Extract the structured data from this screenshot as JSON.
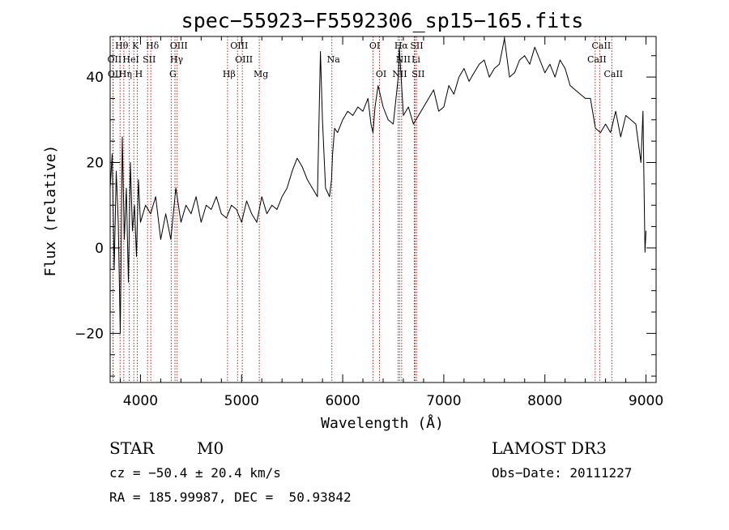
{
  "chart_data": {
    "type": "line",
    "title": "spec−55923−F5592306_sp15−165.fits",
    "xlabel": "Wavelength (Å)",
    "ylabel": "Flux (relative)",
    "xlim": [
      3700,
      9100
    ],
    "ylim": [
      -31.5,
      49.5
    ],
    "x_ticks": [
      4000,
      5000,
      6000,
      7000,
      8000,
      9000
    ],
    "x_tick_labels": [
      "4000",
      "5000",
      "6000",
      "7000",
      "8000",
      "9000"
    ],
    "y_ticks": [
      -20,
      0,
      20,
      40
    ],
    "y_tick_labels": [
      "−20",
      "0",
      "20",
      "40"
    ],
    "series": [
      {
        "name": "flux",
        "x": [
          3700,
          3720,
          3740,
          3760,
          3780,
          3800,
          3820,
          3840,
          3860,
          3880,
          3900,
          3920,
          3940,
          3960,
          3980,
          4000,
          4050,
          4100,
          4150,
          4200,
          4250,
          4300,
          4350,
          4400,
          4450,
          4500,
          4550,
          4600,
          4650,
          4700,
          4750,
          4800,
          4850,
          4900,
          4950,
          5000,
          5050,
          5100,
          5150,
          5200,
          5250,
          5300,
          5350,
          5400,
          5450,
          5500,
          5550,
          5600,
          5650,
          5700,
          5750,
          5780,
          5800,
          5830,
          5850,
          5870,
          5890,
          5900,
          5920,
          5950,
          6000,
          6050,
          6100,
          6150,
          6200,
          6250,
          6280,
          6300,
          6320,
          6350,
          6400,
          6450,
          6500,
          6550,
          6560,
          6580,
          6600,
          6650,
          6700,
          6750,
          6800,
          6850,
          6900,
          6950,
          7000,
          7050,
          7100,
          7150,
          7200,
          7250,
          7300,
          7350,
          7400,
          7450,
          7500,
          7550,
          7600,
          7650,
          7700,
          7750,
          7800,
          7850,
          7900,
          7950,
          8000,
          8050,
          8100,
          8150,
          8200,
          8250,
          8300,
          8350,
          8400,
          8450,
          8500,
          8550,
          8600,
          8650,
          8700,
          8750,
          8800,
          8850,
          8900,
          8950,
          8970,
          8990,
          9000
        ],
        "y": [
          14,
          22,
          -5,
          18,
          6,
          -20,
          26,
          2,
          14,
          -8,
          20,
          4,
          10,
          -2,
          16,
          6,
          10,
          8,
          12,
          2,
          8,
          2,
          14,
          6,
          10,
          8,
          12,
          6,
          10,
          9,
          12,
          8,
          7,
          10,
          9,
          6,
          11,
          8,
          6,
          12,
          8,
          10,
          9,
          12,
          14,
          18,
          21,
          19,
          16,
          14,
          12,
          46,
          30,
          14,
          13,
          12,
          16,
          22,
          28,
          27,
          30,
          32,
          31,
          33,
          32,
          35,
          29,
          27,
          33,
          38,
          33,
          30,
          29,
          40,
          47,
          39,
          31,
          33,
          29,
          31,
          33,
          35,
          37,
          32,
          33,
          38,
          36,
          40,
          42,
          39,
          41,
          43,
          44,
          40,
          42,
          43,
          49,
          40,
          41,
          44,
          45,
          43,
          47,
          44,
          41,
          43,
          40,
          44,
          42,
          38,
          37,
          36,
          35,
          35,
          28,
          27,
          29,
          27,
          32,
          26,
          31,
          30,
          29,
          20,
          32,
          -1,
          4
        ]
      }
    ],
    "lines": [
      {
        "name": "Hθ",
        "wavelength": 3798
      },
      {
        "name": "K",
        "wavelength": 3934
      },
      {
        "name": "Hδ",
        "wavelength": 4102
      },
      {
        "name": "OIII",
        "wavelength": 4363
      },
      {
        "name": "OIII",
        "wavelength": 4960
      },
      {
        "name": "OII",
        "wavelength": 3727
      },
      {
        "name": "HeI",
        "wavelength": 3889
      },
      {
        "name": "SII",
        "wavelength": 4070
      },
      {
        "name": "Hγ",
        "wavelength": 4341
      },
      {
        "name": "OIII",
        "wavelength": 5007
      },
      {
        "name": "Na",
        "wavelength": 5893
      },
      {
        "name": "OI",
        "wavelength": 6300
      },
      {
        "name": "Hα",
        "wavelength": 6563
      },
      {
        "name": "SII",
        "wavelength": 6716
      },
      {
        "name": "CaII",
        "wavelength": 8542
      },
      {
        "name": "OII",
        "wavelength": 3730
      },
      {
        "name": "Hη",
        "wavelength": 3835
      },
      {
        "name": "H",
        "wavelength": 3968
      },
      {
        "name": "G",
        "wavelength": 4304
      },
      {
        "name": "Hβ",
        "wavelength": 4861
      },
      {
        "name": "Mg",
        "wavelength": 5175
      },
      {
        "name": "OI",
        "wavelength": 6364
      },
      {
        "name": "NII",
        "wavelength": 6548
      },
      {
        "name": "NII",
        "wavelength": 6583
      },
      {
        "name": "Li",
        "wavelength": 6708
      },
      {
        "name": "SII",
        "wavelength": 6731
      },
      {
        "name": "CaII",
        "wavelength": 8498
      },
      {
        "name": "CaII",
        "wavelength": 8662
      }
    ]
  },
  "info": {
    "class": "STAR",
    "subclass": "M0",
    "survey": "LAMOST DR3",
    "cz": "cz = −50.4 ± 20.4 km/s",
    "obs_date": "Obs−Date: 20111227",
    "coords": "RA = 185.99987, DEC =  50.93842"
  }
}
